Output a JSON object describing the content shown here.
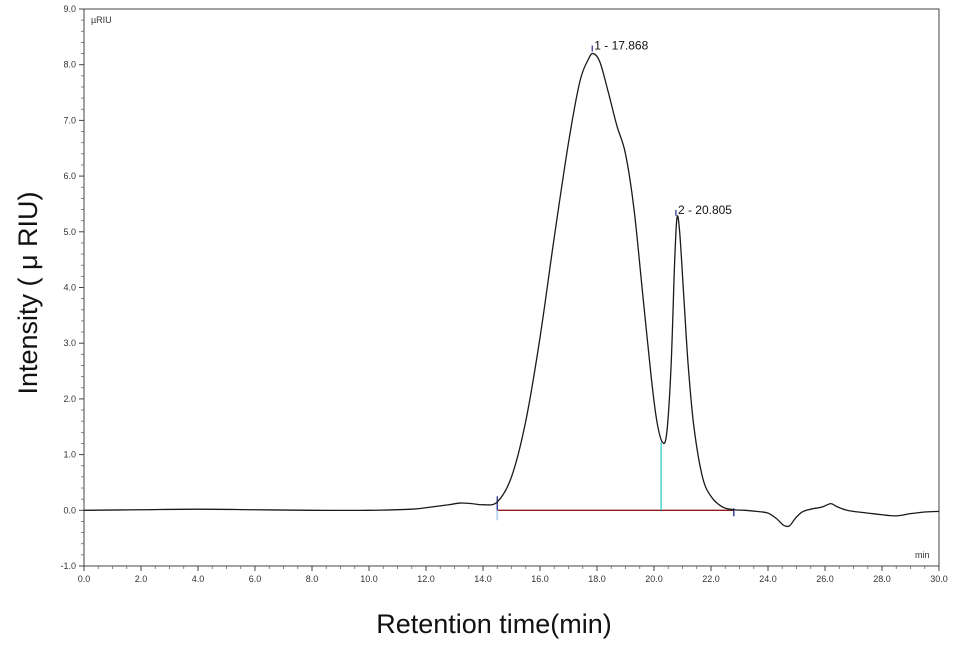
{
  "chart_data": {
    "type": "line",
    "xlabel": "Retention time(min)",
    "ylabel": "Intensity ( μ RIU)",
    "y_unit": "µRIU",
    "x_unit": "min",
    "xlim": [
      0.0,
      30.0
    ],
    "ylim": [
      -1.0,
      9.0
    ],
    "xticks": [
      "0.0",
      "2.0",
      "4.0",
      "6.0",
      "8.0",
      "10.0",
      "12.0",
      "14.0",
      "16.0",
      "18.0",
      "20.0",
      "22.0",
      "24.0",
      "26.0",
      "28.0",
      "30.0"
    ],
    "yticks": [
      "-1.0",
      "0.0",
      "1.0",
      "2.0",
      "3.0",
      "4.0",
      "5.0",
      "6.0",
      "7.0",
      "8.0",
      "9.0"
    ],
    "grid": false,
    "series": [
      {
        "color": "#1a1a1a",
        "x": [
          0.0,
          2.0,
          4.0,
          6.0,
          8.0,
          10.0,
          11.5,
          12.2,
          12.8,
          13.2,
          13.6,
          14.0,
          14.5,
          15.0,
          15.5,
          16.0,
          16.5,
          17.0,
          17.4,
          17.7,
          17.868,
          18.1,
          18.4,
          18.7,
          19.0,
          19.3,
          19.6,
          19.9,
          20.1,
          20.3,
          20.45,
          20.6,
          20.72,
          20.805,
          20.9,
          21.05,
          21.2,
          21.4,
          21.7,
          22.0,
          22.4,
          22.8,
          23.2,
          23.6,
          24.0,
          24.3,
          24.55,
          24.75,
          24.95,
          25.2,
          25.5,
          25.9,
          26.2,
          26.4,
          26.7,
          27.0,
          27.5,
          28.0,
          28.5,
          29.0,
          29.5,
          30.0
        ],
        "y": [
          0.0,
          0.01,
          0.02,
          0.01,
          0.0,
          0.0,
          0.02,
          0.06,
          0.1,
          0.13,
          0.12,
          0.1,
          0.15,
          0.6,
          1.6,
          3.1,
          4.9,
          6.6,
          7.7,
          8.1,
          8.2,
          8.05,
          7.5,
          6.9,
          6.4,
          5.4,
          3.9,
          2.4,
          1.6,
          1.22,
          1.4,
          2.6,
          4.4,
          5.25,
          5.0,
          3.8,
          2.6,
          1.5,
          0.6,
          0.25,
          0.06,
          0.01,
          0.0,
          -0.02,
          -0.05,
          -0.15,
          -0.27,
          -0.28,
          -0.15,
          -0.03,
          0.02,
          0.06,
          0.12,
          0.07,
          0.01,
          -0.02,
          -0.05,
          -0.08,
          -0.1,
          -0.06,
          -0.03,
          -0.02
        ]
      }
    ],
    "peaks": [
      {
        "label": "1 - 17.868",
        "x": 17.868,
        "y": 8.2
      },
      {
        "label": "2 - 20.805",
        "x": 20.805,
        "y": 5.25
      }
    ],
    "integration": {
      "baseline": {
        "x_start": 14.5,
        "x_end": 22.8,
        "y": 0.0,
        "color": "#8b1a1a"
      },
      "drop_line": {
        "x": 20.25,
        "y_top": 1.22,
        "color": "#33cccc"
      },
      "start_marker": {
        "x": 14.5,
        "color": "#1f2a8a"
      },
      "end_marker": {
        "x": 22.8,
        "color": "#1f2a8a"
      }
    }
  }
}
